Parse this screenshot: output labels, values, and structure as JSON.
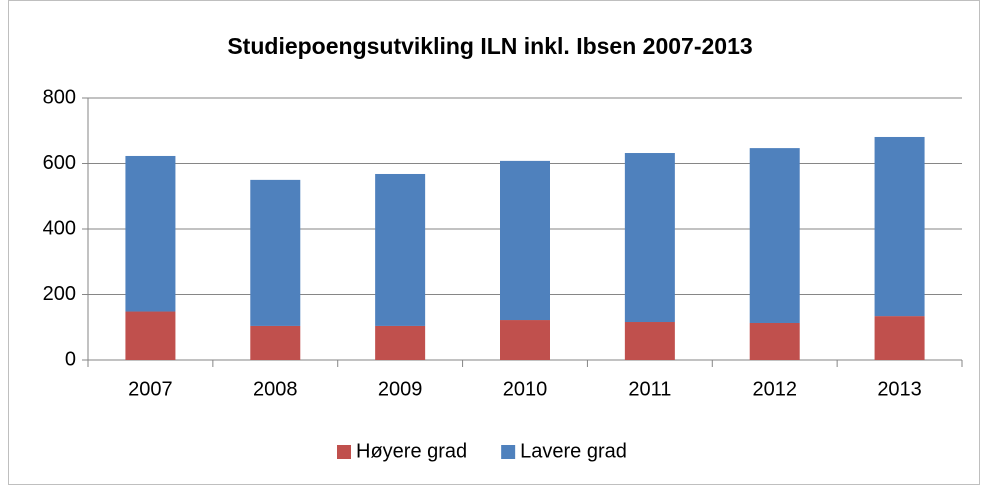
{
  "chart_data": {
    "type": "stacked_bar",
    "title": "Studiepoengsutvikling ILN inkl. Ibsen 2007-2013",
    "categories": [
      "2007",
      "2008",
      "2009",
      "2010",
      "2011",
      "2012",
      "2013"
    ],
    "series": [
      {
        "name": "Høyere grad",
        "color": "#c0504d",
        "values": [
          148,
          104,
          104,
          122,
          116,
          113,
          134
        ]
      },
      {
        "name": "Lavere grad",
        "color": "#4f81bd",
        "values": [
          475,
          446,
          464,
          486,
          516,
          534,
          547
        ]
      }
    ],
    "ylim": [
      0,
      800
    ],
    "yticks": [
      0,
      200,
      400,
      600,
      800
    ],
    "grid": true,
    "legend": "bottom"
  }
}
